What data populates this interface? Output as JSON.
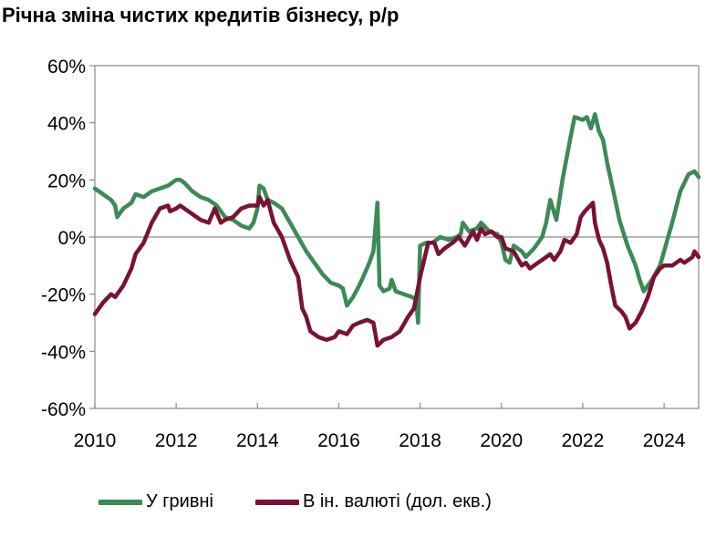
{
  "title": "Річна зміна чистих кредитів бізнесу, р/р",
  "colors": {
    "green": "#3c8a56",
    "maroon": "#7a1233"
  },
  "chart_data": {
    "type": "line",
    "title": "Річна зміна чистих кредитів бізнесу, р/р",
    "xlabel": "",
    "ylabel": "",
    "xlim": [
      2010,
      2024.85
    ],
    "ylim": [
      -60,
      60
    ],
    "y_ticks": [
      60,
      40,
      20,
      0,
      -20,
      -40,
      -60
    ],
    "y_tick_labels": [
      "60%",
      "40%",
      "20%",
      "0%",
      "-20%",
      "-40%",
      "-60%"
    ],
    "x_ticks": [
      2010,
      2012,
      2014,
      2016,
      2018,
      2020,
      2022,
      2024
    ],
    "x_tick_labels": [
      "2010",
      "2012",
      "2014",
      "2016",
      "2018",
      "2020",
      "2022",
      "2024"
    ],
    "grid": false,
    "legend_position": "bottom",
    "series": [
      {
        "name": "У гривні",
        "color": "#3c8a56",
        "points": [
          [
            2010.0,
            17
          ],
          [
            2010.2,
            15
          ],
          [
            2010.4,
            13
          ],
          [
            2010.5,
            11
          ],
          [
            2010.55,
            7
          ],
          [
            2010.7,
            10
          ],
          [
            2010.9,
            12
          ],
          [
            2011.0,
            15
          ],
          [
            2011.2,
            14
          ],
          [
            2011.4,
            16
          ],
          [
            2011.6,
            17
          ],
          [
            2011.8,
            18
          ],
          [
            2012.0,
            20
          ],
          [
            2012.1,
            20
          ],
          [
            2012.2,
            19
          ],
          [
            2012.4,
            16
          ],
          [
            2012.6,
            14
          ],
          [
            2012.8,
            13
          ],
          [
            2013.0,
            11
          ],
          [
            2013.2,
            7
          ],
          [
            2013.4,
            6
          ],
          [
            2013.6,
            4
          ],
          [
            2013.8,
            3
          ],
          [
            2013.9,
            5
          ],
          [
            2014.0,
            10
          ],
          [
            2014.05,
            18
          ],
          [
            2014.15,
            17
          ],
          [
            2014.25,
            13
          ],
          [
            2014.4,
            12
          ],
          [
            2014.6,
            10
          ],
          [
            2014.8,
            5
          ],
          [
            2015.0,
            0
          ],
          [
            2015.2,
            -5
          ],
          [
            2015.4,
            -9
          ],
          [
            2015.6,
            -13
          ],
          [
            2015.8,
            -16
          ],
          [
            2016.0,
            -17
          ],
          [
            2016.1,
            -18
          ],
          [
            2016.2,
            -24
          ],
          [
            2016.35,
            -21
          ],
          [
            2016.5,
            -17
          ],
          [
            2016.6,
            -14
          ],
          [
            2016.75,
            -9
          ],
          [
            2016.85,
            -5
          ],
          [
            2016.95,
            12
          ],
          [
            2017.0,
            -17
          ],
          [
            2017.1,
            -19
          ],
          [
            2017.25,
            -18
          ],
          [
            2017.3,
            -15
          ],
          [
            2017.4,
            -19
          ],
          [
            2017.6,
            -20
          ],
          [
            2017.8,
            -21
          ],
          [
            2017.9,
            -22
          ],
          [
            2017.95,
            -30
          ],
          [
            2018.0,
            -3
          ],
          [
            2018.15,
            -2
          ],
          [
            2018.3,
            -2
          ],
          [
            2018.5,
            0
          ],
          [
            2018.7,
            -1
          ],
          [
            2018.9,
            0
          ],
          [
            2019.0,
            1
          ],
          [
            2019.05,
            5
          ],
          [
            2019.2,
            2
          ],
          [
            2019.4,
            3
          ],
          [
            2019.5,
            5
          ],
          [
            2019.7,
            2
          ],
          [
            2019.9,
            1
          ],
          [
            2020.0,
            -2
          ],
          [
            2020.1,
            -8
          ],
          [
            2020.2,
            -9
          ],
          [
            2020.3,
            -3
          ],
          [
            2020.5,
            -5
          ],
          [
            2020.6,
            -7
          ],
          [
            2020.8,
            -4
          ],
          [
            2020.9,
            -2
          ],
          [
            2021.0,
            0
          ],
          [
            2021.1,
            5
          ],
          [
            2021.2,
            13
          ],
          [
            2021.35,
            6
          ],
          [
            2021.5,
            20
          ],
          [
            2021.7,
            35
          ],
          [
            2021.8,
            42
          ],
          [
            2022.0,
            41
          ],
          [
            2022.1,
            42
          ],
          [
            2022.2,
            38
          ],
          [
            2022.3,
            43
          ],
          [
            2022.4,
            37
          ],
          [
            2022.5,
            34
          ],
          [
            2022.6,
            26
          ],
          [
            2022.8,
            13
          ],
          [
            2022.9,
            6
          ],
          [
            2023.1,
            -3
          ],
          [
            2023.3,
            -10
          ],
          [
            2023.4,
            -15
          ],
          [
            2023.5,
            -19
          ],
          [
            2023.7,
            -15
          ],
          [
            2023.9,
            -10
          ],
          [
            2024.0,
            -5
          ],
          [
            2024.2,
            5
          ],
          [
            2024.4,
            16
          ],
          [
            2024.6,
            22
          ],
          [
            2024.75,
            23
          ],
          [
            2024.85,
            21
          ]
        ]
      },
      {
        "name": "В ін. валюті (дол. екв.)",
        "color": "#7a1233",
        "points": [
          [
            2010.0,
            -27
          ],
          [
            2010.2,
            -23
          ],
          [
            2010.4,
            -20
          ],
          [
            2010.5,
            -21
          ],
          [
            2010.7,
            -17
          ],
          [
            2010.9,
            -11
          ],
          [
            2011.0,
            -6
          ],
          [
            2011.2,
            -2
          ],
          [
            2011.4,
            5
          ],
          [
            2011.6,
            10
          ],
          [
            2011.8,
            11
          ],
          [
            2011.85,
            9
          ],
          [
            2012.0,
            10
          ],
          [
            2012.1,
            11
          ],
          [
            2012.2,
            10
          ],
          [
            2012.4,
            8
          ],
          [
            2012.6,
            6
          ],
          [
            2012.8,
            5
          ],
          [
            2012.95,
            10
          ],
          [
            2013.1,
            5
          ],
          [
            2013.2,
            6
          ],
          [
            2013.4,
            7
          ],
          [
            2013.6,
            10
          ],
          [
            2013.8,
            11
          ],
          [
            2014.0,
            11
          ],
          [
            2014.05,
            14
          ],
          [
            2014.15,
            11
          ],
          [
            2014.25,
            13
          ],
          [
            2014.4,
            5
          ],
          [
            2014.6,
            0
          ],
          [
            2014.8,
            -8
          ],
          [
            2015.0,
            -14
          ],
          [
            2015.1,
            -25
          ],
          [
            2015.2,
            -28
          ],
          [
            2015.3,
            -33
          ],
          [
            2015.5,
            -35
          ],
          [
            2015.7,
            -36
          ],
          [
            2015.9,
            -35
          ],
          [
            2016.0,
            -33
          ],
          [
            2016.2,
            -34
          ],
          [
            2016.35,
            -31
          ],
          [
            2016.5,
            -30
          ],
          [
            2016.7,
            -29
          ],
          [
            2016.85,
            -30
          ],
          [
            2016.95,
            -38
          ],
          [
            2017.1,
            -36
          ],
          [
            2017.3,
            -35
          ],
          [
            2017.5,
            -33
          ],
          [
            2017.7,
            -28
          ],
          [
            2017.85,
            -25
          ],
          [
            2018.0,
            -14
          ],
          [
            2018.2,
            -2
          ],
          [
            2018.35,
            -2
          ],
          [
            2018.45,
            -6
          ],
          [
            2018.6,
            -4
          ],
          [
            2018.8,
            -2
          ],
          [
            2018.95,
            0
          ],
          [
            2019.1,
            -3
          ],
          [
            2019.3,
            2
          ],
          [
            2019.4,
            -1
          ],
          [
            2019.5,
            3
          ],
          [
            2019.6,
            1
          ],
          [
            2019.75,
            2
          ],
          [
            2019.9,
            0
          ],
          [
            2020.0,
            0
          ],
          [
            2020.1,
            -4
          ],
          [
            2020.3,
            -5
          ],
          [
            2020.5,
            -10
          ],
          [
            2020.6,
            -9
          ],
          [
            2020.7,
            -11
          ],
          [
            2020.9,
            -9
          ],
          [
            2021.0,
            -8
          ],
          [
            2021.2,
            -6
          ],
          [
            2021.3,
            -8
          ],
          [
            2021.45,
            -5
          ],
          [
            2021.55,
            -1
          ],
          [
            2021.7,
            -2
          ],
          [
            2021.85,
            1
          ],
          [
            2021.95,
            7
          ],
          [
            2022.05,
            9
          ],
          [
            2022.25,
            12
          ],
          [
            2022.3,
            5
          ],
          [
            2022.4,
            -1
          ],
          [
            2022.5,
            -4
          ],
          [
            2022.6,
            -9
          ],
          [
            2022.7,
            -17
          ],
          [
            2022.8,
            -24
          ],
          [
            2022.95,
            -26
          ],
          [
            2023.05,
            -28
          ],
          [
            2023.15,
            -32
          ],
          [
            2023.3,
            -30
          ],
          [
            2023.45,
            -26
          ],
          [
            2023.6,
            -21
          ],
          [
            2023.75,
            -14
          ],
          [
            2023.9,
            -11
          ],
          [
            2024.0,
            -10
          ],
          [
            2024.2,
            -10
          ],
          [
            2024.4,
            -8
          ],
          [
            2024.5,
            -9
          ],
          [
            2024.7,
            -7
          ],
          [
            2024.75,
            -5
          ],
          [
            2024.85,
            -7
          ]
        ]
      }
    ]
  }
}
